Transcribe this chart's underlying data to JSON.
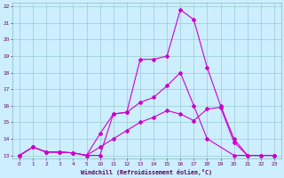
{
  "bg_color": "#cceeff",
  "line_color": "#cc00cc",
  "grid_color": "#99cccc",
  "xlabel": "Windchill (Refroidissement éolien,°C)",
  "xlim": [
    -0.5,
    23.5
  ],
  "ylim": [
    12.8,
    22.2
  ],
  "xticks": [
    0,
    1,
    2,
    3,
    4,
    5,
    10,
    11,
    12,
    13,
    14,
    15,
    16,
    17,
    18,
    19,
    20,
    21,
    22,
    23
  ],
  "xtick_labels": [
    "0",
    "1",
    "2",
    "3",
    "4",
    "5",
    "10",
    "11",
    "12",
    "13",
    "14",
    "15",
    "16",
    "17",
    "18",
    "19",
    "20",
    "21",
    "22",
    "23"
  ],
  "yticks": [
    13,
    14,
    15,
    16,
    17,
    18,
    19,
    20,
    21,
    22
  ],
  "line1_x": [
    0,
    1,
    2,
    3,
    4,
    5,
    10,
    11,
    12,
    13,
    14,
    15,
    16,
    17,
    18,
    19,
    20,
    21,
    22,
    23
  ],
  "line1_y": [
    13,
    13.5,
    13.2,
    13.2,
    13.15,
    13.0,
    13.0,
    15.5,
    15.6,
    18.8,
    18.8,
    19.0,
    21.8,
    21.2,
    18.3,
    16.0,
    14.0,
    13.0,
    13.0,
    13.0
  ],
  "line2_x": [
    0,
    1,
    2,
    3,
    4,
    5,
    10,
    11,
    12,
    13,
    14,
    15,
    16,
    17,
    18,
    20,
    23
  ],
  "line2_y": [
    13,
    13.5,
    13.2,
    13.2,
    13.15,
    13.0,
    14.3,
    15.5,
    15.6,
    16.2,
    16.5,
    17.2,
    18.0,
    16.0,
    14.0,
    13.0,
    13.0
  ],
  "line3_x": [
    0,
    1,
    2,
    3,
    4,
    5,
    10,
    11,
    12,
    13,
    14,
    15,
    16,
    17,
    18,
    19,
    20,
    21,
    22,
    23
  ],
  "line3_y": [
    13,
    13.5,
    13.2,
    13.2,
    13.15,
    13.0,
    13.5,
    14.0,
    14.5,
    15.0,
    15.3,
    15.7,
    15.5,
    15.1,
    15.8,
    15.9,
    13.8,
    13.0,
    13.0,
    13.0
  ]
}
